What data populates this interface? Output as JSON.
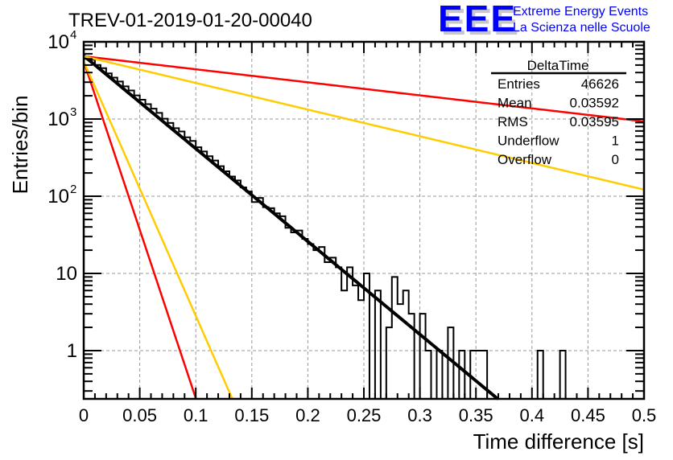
{
  "chart_data": {
    "type": "bar",
    "title": "TREV-01-2019-01-20-00040",
    "xlabel": "Time difference [s]",
    "ylabel": "Entries/bin",
    "xlim": [
      0,
      0.5
    ],
    "ylim": [
      0.237,
      10000
    ],
    "yscale": "log",
    "grid": true,
    "x_ticks": [
      "0",
      "0.05",
      "0.1",
      "0.15",
      "0.2",
      "0.25",
      "0.3",
      "0.35",
      "0.4",
      "0.45",
      "0.5"
    ],
    "x_tick_values": [
      0,
      0.05,
      0.1,
      0.15,
      0.2,
      0.25,
      0.3,
      0.35,
      0.4,
      0.45,
      0.5
    ],
    "y_ticks": [
      {
        "value": 10000,
        "base": "10",
        "exp": "4"
      },
      {
        "value": 1000,
        "base": "10",
        "exp": "3"
      },
      {
        "value": 100,
        "base": "10",
        "exp": "2"
      },
      {
        "value": 10,
        "base": "10",
        "exp": ""
      },
      {
        "value": 1,
        "base": "1",
        "exp": ""
      }
    ],
    "bin_width": 0.005,
    "histogram": {
      "name": "DeltaTime",
      "color": "#000000",
      "values": [
        6300,
        5850,
        5020,
        4560,
        3900,
        3440,
        3060,
        2650,
        2340,
        2020,
        1780,
        1560,
        1360,
        1200,
        1010,
        890,
        760,
        690,
        580,
        520,
        430,
        380,
        330,
        290,
        245,
        210,
        180,
        160,
        130,
        115,
        84,
        95,
        72,
        70,
        60,
        55,
        39,
        34,
        36,
        28,
        24,
        20,
        22,
        14,
        16,
        12,
        6,
        12,
        7,
        4.5,
        10,
        0,
        6,
        0,
        2,
        9,
        4,
        6,
        3,
        0,
        3,
        1,
        0,
        1,
        0,
        2,
        0,
        1,
        0,
        1,
        1,
        1,
        0,
        0,
        0,
        0,
        0,
        0,
        0,
        0,
        0,
        1,
        0,
        0,
        0,
        1,
        0,
        0,
        0,
        0,
        0,
        0,
        0,
        0,
        0,
        0,
        0,
        0,
        0,
        0
      ]
    },
    "series": [
      {
        "name": "fit",
        "color": "#000000",
        "type": "exp",
        "amplitude": 6600,
        "tau": 0.0361,
        "x_end": 0.37
      },
      {
        "name": "red-steep",
        "color": "#ff0000",
        "type": "exp",
        "amplitude": 5600,
        "tau": 0.00995,
        "x_end": 0.1
      },
      {
        "name": "yellow-steep",
        "color": "#ffcc00",
        "type": "exp",
        "amplitude": 5600,
        "tau": 0.01317,
        "x_end": 0.133
      },
      {
        "name": "red-shallow",
        "color": "#ff0000",
        "type": "exp",
        "amplitude": 6500,
        "tau": 0.2573,
        "x_end": 0.5
      },
      {
        "name": "yellow-shallow",
        "color": "#ffcc00",
        "type": "exp",
        "amplitude": 6500,
        "tau": 0.1257,
        "x_end": 0.5
      }
    ],
    "stats_box": {
      "title": "DeltaTime",
      "rows": [
        {
          "label": "Entries",
          "value": "46626"
        },
        {
          "label": "Mean",
          "value": "0.03592"
        },
        {
          "label": "RMS",
          "value": "0.03595"
        },
        {
          "label": "Underflow",
          "value": "1"
        },
        {
          "label": "Overflow",
          "value": "0"
        }
      ]
    },
    "legend": "top-right"
  },
  "logo": {
    "mark": "EEE",
    "line1": "Extreme Energy Events",
    "line2": "La Scienza nelle Scuole",
    "color": "#0000ff",
    "shadow_color": "#c8c8c8"
  }
}
